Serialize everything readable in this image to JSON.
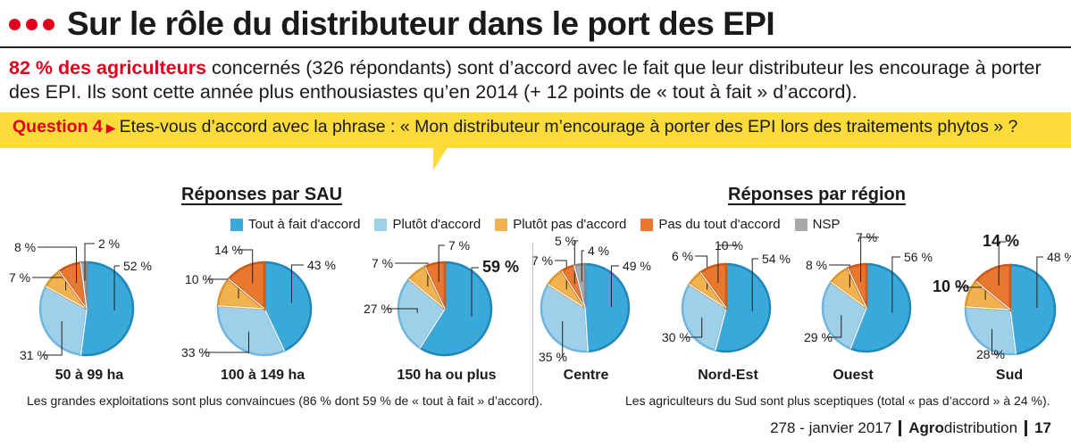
{
  "title": "Sur le rôle du distributeur dans le port des EPI",
  "intro": {
    "highlight": "82 % des agriculteurs",
    "text": " concernés (326 répondants) sont d’accord avec le fait que leur distributeur les encourage à porter des EPI. Ils sont cette année plus enthousiastes qu’en 2014 (+ 12 points de « tout à fait » d’accord)."
  },
  "question": {
    "label": "Question 4",
    "text": "Etes-vous d’accord avec la phrase : « Mon distributeur m’encourage à porter des EPI lors des traitements phytos » ?"
  },
  "sections": {
    "sau": "Réponses par SAU",
    "region": "Réponses par région"
  },
  "legend": [
    {
      "label": "Tout à fait d'accord",
      "color": "#3aa8d8"
    },
    {
      "label": "Plutôt d'accord",
      "color": "#9fd0ea"
    },
    {
      "label": "Plutôt pas d'accord",
      "color": "#f2b24f"
    },
    {
      "label": "Pas du tout d'accord",
      "color": "#e8772f"
    },
    {
      "label": "NSP",
      "color": "#a9a9a9"
    }
  ],
  "chart_data": [
    {
      "type": "pie",
      "title": "50 à 99 ha",
      "labels": [
        "Tout à fait d'accord",
        "Plutôt d'accord",
        "Plutôt pas d'accord",
        "Pas du tout d'accord",
        "NSP"
      ],
      "values": [
        52,
        31,
        7,
        8,
        2
      ],
      "value_labels": [
        "52 %",
        "31 %",
        "7 %",
        "8 %",
        "2 %"
      ]
    },
    {
      "type": "pie",
      "title": "100 à 149 ha",
      "labels": [
        "Tout à fait d'accord",
        "Plutôt d'accord",
        "Plutôt pas d'accord",
        "Pas du tout d'accord"
      ],
      "values": [
        43,
        33,
        10,
        14
      ],
      "value_labels": [
        "43 %",
        "33 %",
        "10 %",
        "14 %"
      ]
    },
    {
      "type": "pie",
      "title": "150 ha ou plus",
      "labels": [
        "Tout à fait d'accord",
        "Plutôt d'accord",
        "Plutôt pas d'accord",
        "Pas du tout d'accord"
      ],
      "values": [
        59,
        27,
        7,
        7
      ],
      "value_labels": [
        "59 %",
        "27 %",
        "7 %",
        "7 %"
      ]
    },
    {
      "type": "pie",
      "title": "Centre",
      "labels": [
        "Tout à fait d'accord",
        "Plutôt d'accord",
        "Plutôt pas d'accord",
        "Pas du tout d'accord",
        "NSP"
      ],
      "values": [
        49,
        35,
        7,
        5,
        4
      ],
      "value_labels": [
        "49 %",
        "35 %",
        "7 %",
        "5 %",
        "4 %"
      ]
    },
    {
      "type": "pie",
      "title": "Nord-Est",
      "labels": [
        "Tout à fait d'accord",
        "Plutôt d'accord",
        "Plutôt pas d'accord",
        "Pas du tout d'accord"
      ],
      "values": [
        54,
        30,
        6,
        10
      ],
      "value_labels": [
        "54 %",
        "30 %",
        "6 %",
        "10 %"
      ]
    },
    {
      "type": "pie",
      "title": "Ouest",
      "labels": [
        "Tout à fait d'accord",
        "Plutôt d'accord",
        "Plutôt pas d'accord",
        "Pas du tout d'accord"
      ],
      "values": [
        56,
        29,
        8,
        7
      ],
      "value_labels": [
        "56 %",
        "29 %",
        "8 %",
        "7 %"
      ]
    },
    {
      "type": "pie",
      "title": "Sud",
      "labels": [
        "Tout à fait d'accord",
        "Plutôt d'accord",
        "Plutôt pas d'accord",
        "Pas du tout d'accord"
      ],
      "values": [
        48,
        28,
        10,
        14
      ],
      "value_labels": [
        "48 %",
        "28 %",
        "10 %",
        "14 %"
      ]
    }
  ],
  "notes": {
    "sau": "Les grandes exploitations sont plus convaincues (86 % dont 59 % de « tout à fait » d’accord).",
    "region": "Les agriculteurs du Sud sont plus sceptiques (total « pas d’accord » à 24 %)."
  },
  "footer": {
    "issue": "278 - janvier 2017",
    "brand_bold": "Agro",
    "brand_rest": "distribution",
    "page": "17"
  }
}
